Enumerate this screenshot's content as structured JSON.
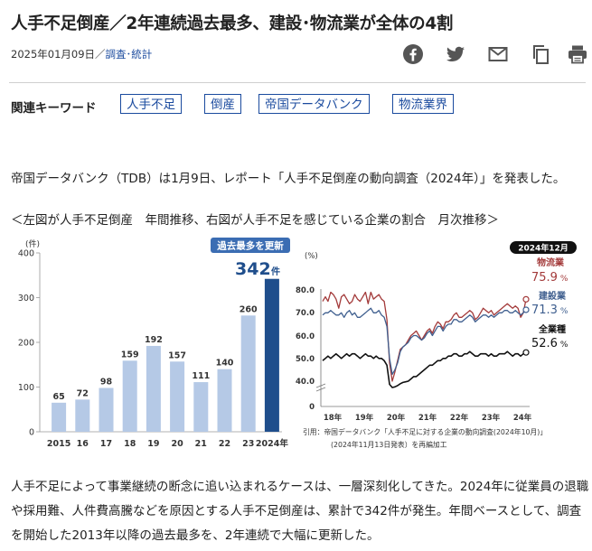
{
  "article": {
    "title": "人手不足倒産／2年連続過去最多、建設･物流業が全体の4割",
    "date": "2025年01月09日／",
    "category": "調査･統計"
  },
  "share": [
    "facebook-icon",
    "twitter-icon",
    "mail-icon",
    "copy-icon",
    "print-icon"
  ],
  "keywords": {
    "label": "関連キーワード",
    "items": [
      "人手不足",
      "倒産",
      "帝国データバンク",
      "物流業界"
    ]
  },
  "paragraphs": {
    "p1": "帝国データバンク（TDB）は1月9日、レポート「人手不足倒産の動向調査（2024年）」を発表した。",
    "p2": "＜左図が人手不足倒産　年間推移、右図が人手不足を感じている企業の割合　月次推移＞",
    "p3": "人手不足によって事業継続の断念に追い込まれるケースは、一層深刻化してきた。2024年に従業員の退職や採用難、人件費高騰などを原因とする人手不足倒産は、累計で342件が発生。年間ベースとして、調査を開始した2013年以降の過去最多を、2年連続で大幅に更新した。"
  },
  "chart_data": [
    {
      "type": "bar",
      "unit_label": "(件)",
      "categories": [
        "2015",
        "16",
        "17",
        "18",
        "19",
        "20",
        "21",
        "22",
        "23",
        "2024年"
      ],
      "values": [
        65,
        72,
        98,
        159,
        192,
        157,
        111,
        140,
        260,
        342
      ],
      "ylim": [
        0,
        400
      ],
      "yticks": [
        0,
        100,
        200,
        300,
        400
      ],
      "highlight_badge": "過去最多を更新",
      "highlight_value": "342",
      "highlight_unit": "件",
      "colors": {
        "normal": "#b5c9e6",
        "highlight": "#1f4e8c"
      }
    },
    {
      "type": "line",
      "unit_label": "(%)",
      "ylim": [
        0,
        80
      ],
      "yticks": [
        "0",
        "40.0",
        "50.0",
        "60.0",
        "70.0",
        "80.0"
      ],
      "x_ticks": [
        "18年",
        "19年",
        "20年",
        "21年",
        "22年",
        "23年",
        "24年"
      ],
      "badge": "2024年12月",
      "series": [
        {
          "name": "物流業",
          "last_value": "75.9",
          "unit": "%",
          "color": "#a33a3a",
          "values": [
            75,
            77,
            75,
            79,
            78,
            76,
            72,
            77,
            78,
            76,
            74,
            75,
            78,
            76,
            75,
            77,
            79,
            74,
            79,
            76,
            77,
            78,
            76,
            75,
            67,
            48,
            40,
            44,
            49,
            54,
            55,
            56,
            58,
            60,
            61,
            62,
            60,
            58,
            60,
            62,
            63,
            61,
            64,
            66,
            65,
            63,
            66,
            66,
            67,
            69,
            70,
            68,
            68,
            69,
            70,
            71,
            70,
            67,
            68,
            70,
            72,
            71,
            70,
            71,
            69,
            70,
            71,
            72,
            73,
            74,
            73,
            72,
            73,
            72,
            68,
            70,
            75.9
          ]
        },
        {
          "name": "建設業",
          "last_value": "71.3",
          "unit": "%",
          "color": "#3f5f8f",
          "values": [
            69,
            70,
            70,
            71,
            70,
            69,
            69,
            70,
            68,
            70,
            71,
            69,
            70,
            68,
            68,
            69,
            70,
            71,
            72,
            70,
            70,
            71,
            69,
            68,
            64,
            50,
            43,
            45,
            48,
            53,
            55,
            56,
            57,
            59,
            60,
            60,
            59,
            58,
            59,
            61,
            62,
            60,
            62,
            64,
            64,
            62,
            64,
            65,
            65,
            67,
            67,
            66,
            66,
            67,
            68,
            69,
            68,
            66,
            67,
            68,
            69,
            69,
            68,
            69,
            68,
            69,
            70,
            70,
            71,
            71,
            70,
            70,
            71,
            70,
            69,
            70,
            71.3
          ]
        },
        {
          "name": "全業種",
          "last_value": "52.6",
          "unit": "%",
          "color": "#111111",
          "values": [
            49,
            50,
            51,
            50,
            51,
            52,
            51,
            50,
            51,
            52,
            51,
            52,
            52,
            51,
            50,
            51,
            52,
            51,
            51,
            50,
            51,
            50,
            50,
            49,
            47,
            35,
            30,
            31,
            33,
            36,
            38,
            39,
            40,
            41,
            42,
            42,
            43,
            44,
            45,
            46,
            47,
            47,
            48,
            49,
            49,
            50,
            50,
            51,
            51,
            52,
            52,
            51,
            51,
            52,
            52,
            53,
            52,
            51,
            51,
            52,
            52,
            52,
            51,
            52,
            51,
            51,
            52,
            52,
            52,
            53,
            52,
            51,
            52,
            52,
            51,
            52,
            52.6
          ]
        }
      ],
      "source_line1": "引用：帝国データバンク「人手不足に対する企業の動向調査(2024年10月)」",
      "source_line2": "(2024年11月13日発表）を再編加工"
    }
  ]
}
